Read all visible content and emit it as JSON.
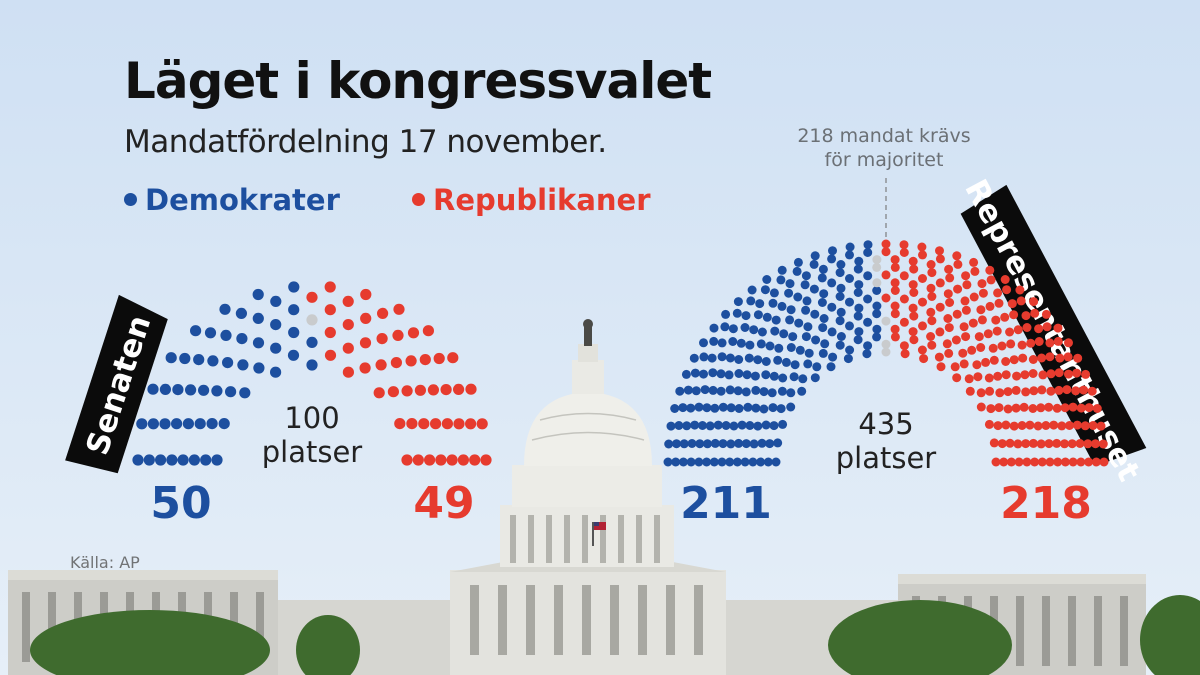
{
  "title": "Läget i kongressvalet",
  "subtitle": "Mandatfördelning 17 november.",
  "legend": [
    {
      "label": "Demokrater",
      "color": "#1d4f9f"
    },
    {
      "label": "Republikaner",
      "color": "#e63b2e"
    }
  ],
  "majority_note": [
    "218 mandat krävs",
    "för majoritet"
  ],
  "source": "Källa: AP",
  "colors": {
    "dem": "#1d4f9f",
    "rep": "#e63b2e",
    "undecided": "#c9cbcd"
  },
  "chart_data": [
    {
      "type": "parliament",
      "chamber": "Senaten",
      "total_seats": 100,
      "total_label": [
        "100",
        "platser"
      ],
      "series": [
        {
          "name": "Demokrater",
          "value": 50,
          "label": "50"
        },
        {
          "name": "Republikaner",
          "value": 49,
          "label": "49"
        },
        {
          "name": "",
          "value": 1
        }
      ]
    },
    {
      "type": "parliament",
      "chamber": "Representanthuset",
      "total_seats": 435,
      "total_label": [
        "435",
        "platser"
      ],
      "majority": 218,
      "series": [
        {
          "name": "Demokrater",
          "value": 211,
          "label": "211"
        },
        {
          "name": "Republikaner",
          "value": 218,
          "label": "218"
        },
        {
          "name": "",
          "value": 6
        }
      ]
    }
  ]
}
